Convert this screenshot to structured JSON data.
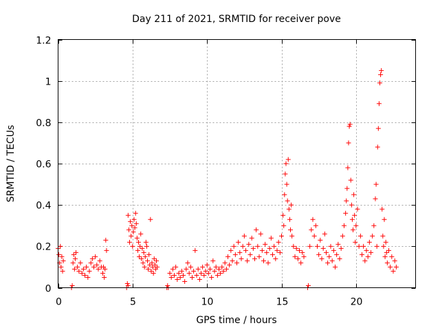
{
  "chart_data": {
    "type": "scatter",
    "title": "Day 211 of 2021, SRMTID for receiver pove",
    "xlabel": "GPS time / hours",
    "ylabel": "SRMTID / TECUs",
    "xlim": [
      0,
      24
    ],
    "ylim": [
      0,
      1.2
    ],
    "xticks": [
      0,
      5,
      10,
      15,
      20
    ],
    "xtick_labels": [
      "0",
      "5",
      "10",
      "15",
      "20"
    ],
    "yticks": [
      0,
      0.2,
      0.4,
      0.6,
      0.8,
      1.0,
      1.2
    ],
    "ytick_labels": [
      "0",
      "0.2",
      "0.4",
      "0.6",
      "0.8",
      "1",
      "1.2"
    ],
    "grid": true,
    "marker": "+",
    "series_color": "#ff0000",
    "series": [
      {
        "name": "SRMTID",
        "points": [
          [
            0.0,
            0.19
          ],
          [
            0.05,
            0.16
          ],
          [
            0.1,
            0.12
          ],
          [
            0.15,
            0.2
          ],
          [
            0.2,
            0.1
          ],
          [
            0.25,
            0.15
          ],
          [
            0.3,
            0.08
          ],
          [
            0.35,
            0.13
          ],
          [
            0.9,
            0.0
          ],
          [
            0.95,
            0.01
          ],
          [
            1.0,
            0.12
          ],
          [
            1.05,
            0.16
          ],
          [
            1.1,
            0.09
          ],
          [
            1.15,
            0.14
          ],
          [
            1.2,
            0.17
          ],
          [
            1.3,
            0.1
          ],
          [
            1.4,
            0.08
          ],
          [
            1.5,
            0.12
          ],
          [
            1.6,
            0.07
          ],
          [
            1.7,
            0.09
          ],
          [
            1.8,
            0.06
          ],
          [
            1.9,
            0.1
          ],
          [
            2.0,
            0.05
          ],
          [
            2.1,
            0.08
          ],
          [
            2.2,
            0.12
          ],
          [
            2.3,
            0.14
          ],
          [
            2.4,
            0.1
          ],
          [
            2.5,
            0.15
          ],
          [
            2.6,
            0.11
          ],
          [
            2.7,
            0.09
          ],
          [
            2.8,
            0.13
          ],
          [
            2.9,
            0.1
          ],
          [
            3.0,
            0.07
          ],
          [
            3.05,
            0.1
          ],
          [
            3.1,
            0.05
          ],
          [
            3.15,
            0.09
          ],
          [
            3.2,
            0.23
          ],
          [
            3.25,
            0.18
          ],
          [
            4.6,
            0.0
          ],
          [
            4.65,
            0.02
          ],
          [
            4.7,
            0.01
          ],
          [
            4.7,
            0.35
          ],
          [
            4.75,
            0.28
          ],
          [
            4.8,
            0.22
          ],
          [
            4.85,
            0.32
          ],
          [
            4.9,
            0.25
          ],
          [
            4.95,
            0.3
          ],
          [
            5.0,
            0.2
          ],
          [
            5.05,
            0.27
          ],
          [
            5.1,
            0.33
          ],
          [
            5.15,
            0.29
          ],
          [
            5.2,
            0.36
          ],
          [
            5.25,
            0.31
          ],
          [
            5.3,
            0.24
          ],
          [
            5.35,
            0.18
          ],
          [
            5.4,
            0.22
          ],
          [
            5.45,
            0.15
          ],
          [
            5.5,
            0.2
          ],
          [
            5.55,
            0.26
          ],
          [
            5.6,
            0.14
          ],
          [
            5.65,
            0.19
          ],
          [
            5.7,
            0.12
          ],
          [
            5.75,
            0.17
          ],
          [
            5.8,
            0.1
          ],
          [
            5.85,
            0.15
          ],
          [
            5.9,
            0.22
          ],
          [
            5.95,
            0.2
          ],
          [
            6.0,
            0.13
          ],
          [
            6.05,
            0.09
          ],
          [
            6.1,
            0.16
          ],
          [
            6.15,
            0.11
          ],
          [
            6.2,
            0.33
          ],
          [
            6.25,
            0.08
          ],
          [
            6.3,
            0.12
          ],
          [
            6.35,
            0.1
          ],
          [
            6.4,
            0.07
          ],
          [
            6.45,
            0.14
          ],
          [
            6.5,
            0.11
          ],
          [
            6.55,
            0.09
          ],
          [
            6.6,
            0.13
          ],
          [
            6.65,
            0.1
          ],
          [
            7.3,
            0.0
          ],
          [
            7.35,
            0.01
          ],
          [
            7.4,
            0.0
          ],
          [
            7.5,
            0.07
          ],
          [
            7.6,
            0.05
          ],
          [
            7.7,
            0.09
          ],
          [
            7.8,
            0.06
          ],
          [
            7.9,
            0.1
          ],
          [
            8.0,
            0.04
          ],
          [
            8.1,
            0.07
          ],
          [
            8.2,
            0.05
          ],
          [
            8.3,
            0.08
          ],
          [
            8.4,
            0.06
          ],
          [
            8.5,
            0.03
          ],
          [
            8.6,
            0.09
          ],
          [
            8.7,
            0.12
          ],
          [
            8.8,
            0.07
          ],
          [
            8.9,
            0.1
          ],
          [
            9.0,
            0.05
          ],
          [
            9.1,
            0.08
          ],
          [
            9.2,
            0.18
          ],
          [
            9.3,
            0.06
          ],
          [
            9.4,
            0.09
          ],
          [
            9.5,
            0.04
          ],
          [
            9.6,
            0.07
          ],
          [
            9.7,
            0.1
          ],
          [
            9.8,
            0.06
          ],
          [
            9.9,
            0.08
          ],
          [
            10.0,
            0.11
          ],
          [
            10.1,
            0.07
          ],
          [
            10.2,
            0.09
          ],
          [
            10.3,
            0.05
          ],
          [
            10.4,
            0.13
          ],
          [
            10.5,
            0.08
          ],
          [
            10.6,
            0.1
          ],
          [
            10.7,
            0.06
          ],
          [
            10.8,
            0.09
          ],
          [
            10.9,
            0.07
          ],
          [
            11.0,
            0.1
          ],
          [
            11.1,
            0.08
          ],
          [
            11.2,
            0.12
          ],
          [
            11.3,
            0.09
          ],
          [
            11.4,
            0.15
          ],
          [
            11.5,
            0.11
          ],
          [
            11.6,
            0.18
          ],
          [
            11.7,
            0.13
          ],
          [
            11.8,
            0.2
          ],
          [
            11.9,
            0.16
          ],
          [
            12.0,
            0.12
          ],
          [
            12.1,
            0.22
          ],
          [
            12.2,
            0.17
          ],
          [
            12.3,
            0.14
          ],
          [
            12.4,
            0.2
          ],
          [
            12.5,
            0.25
          ],
          [
            12.6,
            0.18
          ],
          [
            12.7,
            0.13
          ],
          [
            12.8,
            0.21
          ],
          [
            12.9,
            0.16
          ],
          [
            13.0,
            0.24
          ],
          [
            13.1,
            0.19
          ],
          [
            13.2,
            0.14
          ],
          [
            13.3,
            0.28
          ],
          [
            13.4,
            0.2
          ],
          [
            13.5,
            0.15
          ],
          [
            13.6,
            0.26
          ],
          [
            13.7,
            0.18
          ],
          [
            13.8,
            0.13
          ],
          [
            13.9,
            0.21
          ],
          [
            14.0,
            0.17
          ],
          [
            14.1,
            0.12
          ],
          [
            14.2,
            0.19
          ],
          [
            14.3,
            0.24
          ],
          [
            14.4,
            0.16
          ],
          [
            14.5,
            0.2
          ],
          [
            14.6,
            0.14
          ],
          [
            14.7,
            0.18
          ],
          [
            14.8,
            0.22
          ],
          [
            14.9,
            0.17
          ],
          [
            15.0,
            0.25
          ],
          [
            15.1,
            0.35
          ],
          [
            15.15,
            0.3
          ],
          [
            15.2,
            0.45
          ],
          [
            15.25,
            0.55
          ],
          [
            15.3,
            0.6
          ],
          [
            15.35,
            0.5
          ],
          [
            15.4,
            0.42
          ],
          [
            15.45,
            0.62
          ],
          [
            15.5,
            0.38
          ],
          [
            15.55,
            0.33
          ],
          [
            15.6,
            0.28
          ],
          [
            15.65,
            0.4
          ],
          [
            15.7,
            0.25
          ],
          [
            15.8,
            0.2
          ],
          [
            15.9,
            0.15
          ],
          [
            16.0,
            0.19
          ],
          [
            16.1,
            0.14
          ],
          [
            16.2,
            0.18
          ],
          [
            16.3,
            0.12
          ],
          [
            16.4,
            0.17
          ],
          [
            16.5,
            0.15
          ],
          [
            16.75,
            0.0
          ],
          [
            16.8,
            0.01
          ],
          [
            16.9,
            0.2
          ],
          [
            17.0,
            0.28
          ],
          [
            17.1,
            0.33
          ],
          [
            17.2,
            0.25
          ],
          [
            17.3,
            0.3
          ],
          [
            17.4,
            0.2
          ],
          [
            17.5,
            0.16
          ],
          [
            17.6,
            0.23
          ],
          [
            17.7,
            0.14
          ],
          [
            17.8,
            0.19
          ],
          [
            17.9,
            0.26
          ],
          [
            18.0,
            0.17
          ],
          [
            18.1,
            0.12
          ],
          [
            18.2,
            0.15
          ],
          [
            18.3,
            0.2
          ],
          [
            18.4,
            0.13
          ],
          [
            18.5,
            0.18
          ],
          [
            18.6,
            0.1
          ],
          [
            18.7,
            0.16
          ],
          [
            18.8,
            0.21
          ],
          [
            18.9,
            0.14
          ],
          [
            19.0,
            0.19
          ],
          [
            19.1,
            0.25
          ],
          [
            19.2,
            0.3
          ],
          [
            19.3,
            0.36
          ],
          [
            19.35,
            0.42
          ],
          [
            19.4,
            0.48
          ],
          [
            19.45,
            0.58
          ],
          [
            19.5,
            0.7
          ],
          [
            19.55,
            0.78
          ],
          [
            19.6,
            0.79
          ],
          [
            19.65,
            0.52
          ],
          [
            19.7,
            0.4
          ],
          [
            19.75,
            0.33
          ],
          [
            19.8,
            0.28
          ],
          [
            19.85,
            0.45
          ],
          [
            19.9,
            0.35
          ],
          [
            19.95,
            0.22
          ],
          [
            20.0,
            0.3
          ],
          [
            20.1,
            0.38
          ],
          [
            20.2,
            0.2
          ],
          [
            20.3,
            0.25
          ],
          [
            20.4,
            0.16
          ],
          [
            20.5,
            0.2
          ],
          [
            20.6,
            0.13
          ],
          [
            20.7,
            0.18
          ],
          [
            20.8,
            0.15
          ],
          [
            20.9,
            0.22
          ],
          [
            21.0,
            0.17
          ],
          [
            21.1,
            0.25
          ],
          [
            21.2,
            0.3
          ],
          [
            21.3,
            0.43
          ],
          [
            21.35,
            0.5
          ],
          [
            21.4,
            0.2
          ],
          [
            21.45,
            0.68
          ],
          [
            21.5,
            0.77
          ],
          [
            21.55,
            0.89
          ],
          [
            21.6,
            0.99
          ],
          [
            21.65,
            1.03
          ],
          [
            21.7,
            1.05
          ],
          [
            21.75,
            0.38
          ],
          [
            21.8,
            0.25
          ],
          [
            21.85,
            0.2
          ],
          [
            21.9,
            0.33
          ],
          [
            21.95,
            0.15
          ],
          [
            22.0,
            0.22
          ],
          [
            22.05,
            0.17
          ],
          [
            22.1,
            0.12
          ],
          [
            22.2,
            0.18
          ],
          [
            22.3,
            0.1
          ],
          [
            22.4,
            0.15
          ],
          [
            22.5,
            0.08
          ],
          [
            22.6,
            0.13
          ],
          [
            22.7,
            0.1
          ]
        ]
      }
    ]
  }
}
